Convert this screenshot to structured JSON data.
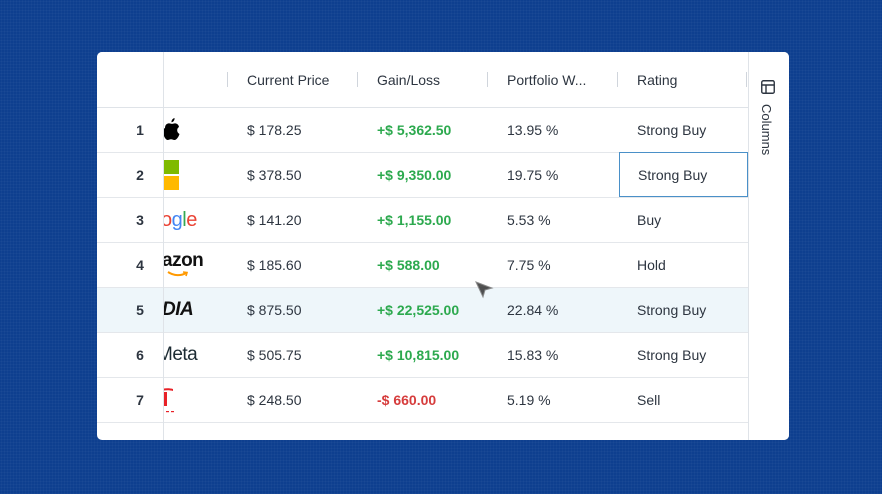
{
  "header": {
    "columns": [
      {
        "key": "price",
        "label": "Current Price"
      },
      {
        "key": "gain",
        "label": "Gain/Loss"
      },
      {
        "key": "weight",
        "label": "Portfolio W..."
      },
      {
        "key": "rating",
        "label": "Rating"
      }
    ]
  },
  "side_panel": {
    "columns_tab_label": "Columns",
    "columns_tab_icon": "columns-icon"
  },
  "rows": [
    {
      "num": "1",
      "logo": "apple-logo",
      "logo_text": "",
      "price": "$ 178.25",
      "gain": "+$ 5,362.50",
      "gain_sign": "positive",
      "weight": "13.95 %",
      "rating": "Strong Buy"
    },
    {
      "num": "2",
      "logo": "microsoft-logo",
      "logo_text": "",
      "price": "$ 378.50",
      "gain": "+$ 9,350.00",
      "gain_sign": "positive",
      "weight": "19.75 %",
      "rating": "Strong Buy"
    },
    {
      "num": "3",
      "logo": "google-logo",
      "logo_text": "ogle",
      "price": "$ 141.20",
      "gain": "+$ 1,155.00",
      "gain_sign": "positive",
      "weight": "5.53 %",
      "rating": "Buy"
    },
    {
      "num": "4",
      "logo": "amazon-logo",
      "logo_text": "azon",
      "price": "$ 185.60",
      "gain": "+$ 588.00",
      "gain_sign": "positive",
      "weight": "7.75 %",
      "rating": "Hold"
    },
    {
      "num": "5",
      "logo": "nvidia-logo",
      "logo_text": "DIA",
      "price": "$ 875.50",
      "gain": "+$ 22,525.00",
      "gain_sign": "positive",
      "weight": "22.84 %",
      "rating": "Strong Buy"
    },
    {
      "num": "6",
      "logo": "meta-logo",
      "logo_text": "Meta",
      "price": "$ 505.75",
      "gain": "+$ 10,815.00",
      "gain_sign": "positive",
      "weight": "15.83 %",
      "rating": "Strong Buy"
    },
    {
      "num": "7",
      "logo": "tesla-logo",
      "logo_text": "",
      "price": "$ 248.50",
      "gain": "-$ 660.00",
      "gain_sign": "negative",
      "weight": "5.19 %",
      "rating": "Sell"
    }
  ],
  "state": {
    "highlighted_row": "5",
    "selected_cell": "row 2 rating"
  },
  "colors": {
    "background": "#0e3f8f",
    "positive": "#2ca94e",
    "negative": "#d63c3c",
    "selection_border": "#4a90c8",
    "row_highlight": "#eef6fa"
  }
}
